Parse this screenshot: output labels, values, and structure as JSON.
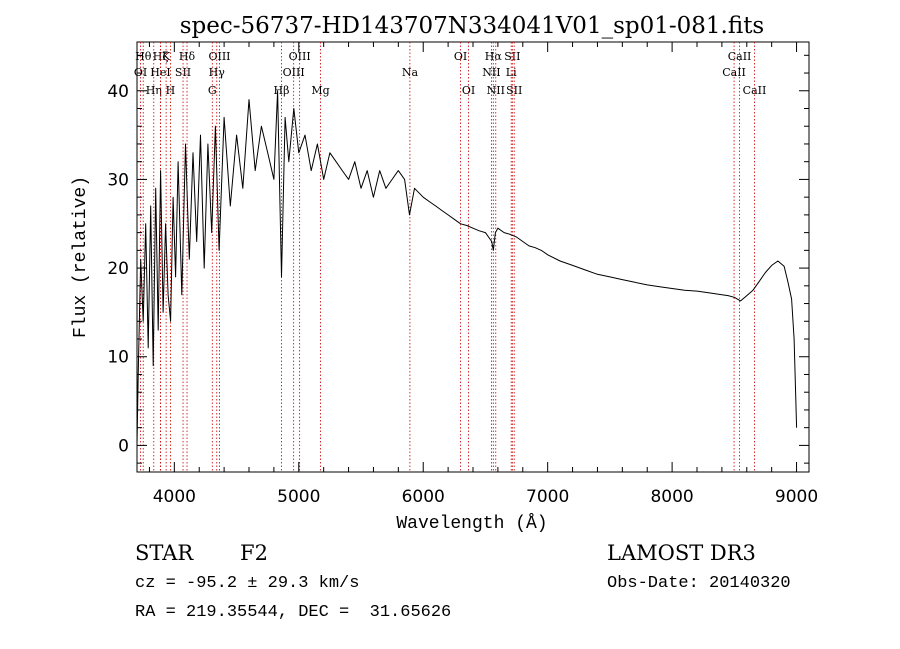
{
  "chart_data": {
    "type": "line",
    "title": "spec-56737-HD143707N334041V01_sp01-081.fits",
    "xlabel": "Wavelength (Å)",
    "ylabel": "Flux (relative)",
    "xlim": [
      3700,
      9100
    ],
    "ylim": [
      -3,
      45.5
    ],
    "xticks": [
      4000,
      5000,
      6000,
      7000,
      8000,
      9000
    ],
    "yticks": [
      0,
      10,
      20,
      30,
      40
    ],
    "series": [
      {
        "name": "spectrum",
        "x": [
          3700,
          3710,
          3730,
          3750,
          3770,
          3790,
          3810,
          3830,
          3850,
          3870,
          3890,
          3910,
          3930,
          3950,
          3970,
          3990,
          4010,
          4030,
          4060,
          4090,
          4120,
          4150,
          4180,
          4210,
          4240,
          4270,
          4300,
          4330,
          4360,
          4400,
          4450,
          4500,
          4550,
          4600,
          4650,
          4700,
          4750,
          4800,
          4830,
          4861,
          4890,
          4920,
          4960,
          5000,
          5050,
          5100,
          5150,
          5200,
          5250,
          5300,
          5350,
          5400,
          5450,
          5500,
          5550,
          5600,
          5650,
          5700,
          5750,
          5800,
          5850,
          5890,
          5930,
          6000,
          6050,
          6100,
          6150,
          6200,
          6250,
          6300,
          6350,
          6400,
          6450,
          6500,
          6550,
          6563,
          6580,
          6600,
          6650,
          6700,
          6750,
          6800,
          6850,
          6900,
          6950,
          7000,
          7100,
          7200,
          7300,
          7400,
          7500,
          7600,
          7700,
          7800,
          7900,
          8000,
          8100,
          8200,
          8300,
          8400,
          8450,
          8500,
          8550,
          8600,
          8650,
          8700,
          8750,
          8800,
          8850,
          8900,
          8930,
          8960,
          8980,
          9000
        ],
        "values": [
          0,
          8,
          21,
          14,
          25,
          11,
          27,
          9,
          29,
          13,
          31,
          15,
          25,
          17,
          14,
          28,
          19,
          32,
          17,
          34,
          21,
          33,
          23,
          35,
          20,
          34,
          24,
          36,
          22,
          37,
          27,
          35,
          29,
          39,
          31,
          36,
          33,
          30,
          40,
          19,
          37,
          32,
          38,
          33,
          35,
          31,
          34,
          30,
          33,
          32,
          31,
          30,
          32,
          29,
          31,
          28,
          31,
          29,
          30,
          31,
          30,
          26,
          29,
          28,
          27.5,
          27,
          26.5,
          26,
          25.5,
          25,
          24.8,
          24.5,
          24.2,
          24,
          23,
          22,
          24,
          24.5,
          24,
          23.8,
          23.5,
          23,
          22.5,
          22.3,
          22,
          21.5,
          20.8,
          20.3,
          19.8,
          19.3,
          19,
          18.7,
          18.4,
          18.1,
          17.9,
          17.7,
          17.5,
          17.4,
          17.2,
          17,
          16.9,
          16.7,
          16.3,
          16.9,
          17.5,
          18.5,
          19.5,
          20.3,
          20.8,
          20.2,
          18.5,
          16.5,
          12,
          2
        ]
      }
    ],
    "line_markers": [
      {
        "label": "OI",
        "x": 3729,
        "row": 1
      },
      {
        "label": "Hθ",
        "x": 3750,
        "row": 0
      },
      {
        "label": "Hη",
        "x": 3835,
        "row": 2
      },
      {
        "label": "Hζ",
        "x": 3889,
        "row": 0
      },
      {
        "label": "HeI",
        "x": 3889,
        "row": 1
      },
      {
        "label": "K",
        "x": 3934,
        "row": 0
      },
      {
        "label": "H",
        "x": 3969,
        "row": 2
      },
      {
        "label": "SII",
        "x": 4070,
        "row": 1
      },
      {
        "label": "Hδ",
        "x": 4102,
        "row": 0
      },
      {
        "label": "G",
        "x": 4305,
        "row": 2
      },
      {
        "label": "Hγ",
        "x": 4341,
        "row": 1
      },
      {
        "label": "OIII",
        "x": 4363,
        "row": 0
      },
      {
        "label": "Hβ",
        "x": 4861,
        "row": 2
      },
      {
        "label": "OIII",
        "x": 4959,
        "row": 1
      },
      {
        "label": "OIII",
        "x": 5007,
        "row": 0
      },
      {
        "label": "Mg",
        "x": 5175,
        "row": 2
      },
      {
        "label": "Na",
        "x": 5893,
        "row": 1
      },
      {
        "label": "OI",
        "x": 6300,
        "row": 0
      },
      {
        "label": "OI",
        "x": 6364,
        "row": 2
      },
      {
        "label": "NII",
        "x": 6548,
        "row": 1
      },
      {
        "label": "Hα",
        "x": 6563,
        "row": 0
      },
      {
        "label": "NII",
        "x": 6583,
        "row": 2
      },
      {
        "label": "Li",
        "x": 6707,
        "row": 1
      },
      {
        "label": "SII",
        "x": 6716,
        "row": 0
      },
      {
        "label": "SII",
        "x": 6731,
        "row": 2
      },
      {
        "label": "CaII",
        "x": 8498,
        "row": 1
      },
      {
        "label": "CaII",
        "x": 8542,
        "row": 0
      },
      {
        "label": "CaII",
        "x": 8662,
        "row": 2
      }
    ]
  },
  "info": {
    "class_label": "STAR",
    "subclass": "F2",
    "survey": "LAMOST DR3",
    "redshift_line": "cz = -95.2 ± 29.3 km/s",
    "obs_date_line": "Obs-Date: 20140320",
    "coords_line": "RA = 219.35544, DEC =  31.65626"
  },
  "colors": {
    "axis": "#000000",
    "spectrum": "#000000",
    "marker": "#cc0000"
  }
}
